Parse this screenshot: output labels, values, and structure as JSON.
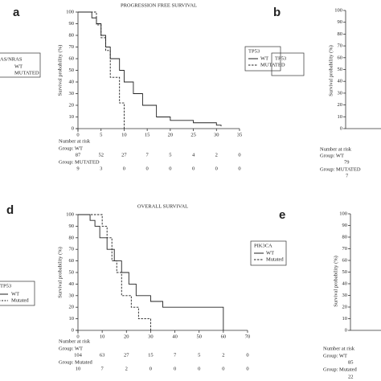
{
  "chart_data": [
    {
      "type": "step",
      "panel": "a",
      "title": "PROGRESSION FREE SURVIVAL",
      "y_label": "Survival probability (%)",
      "xlim": [
        0,
        35
      ],
      "xticks": [
        0,
        5,
        10,
        15,
        20,
        25,
        30,
        35
      ],
      "ylim": [
        0,
        100
      ],
      "yticks": [
        0,
        10,
        20,
        30,
        40,
        50,
        60,
        70,
        80,
        90,
        100
      ],
      "legend_title": "TP53",
      "series": [
        {
          "name": "WT",
          "color": "#222222",
          "linestyle": "solid",
          "x": [
            0,
            3,
            4,
            5,
            6,
            7,
            9,
            10,
            12,
            14,
            17,
            20,
            25,
            30,
            31
          ],
          "values": [
            100,
            95,
            90,
            80,
            70,
            60,
            50,
            40,
            30,
            20,
            10,
            7,
            5,
            3,
            2
          ]
        },
        {
          "name": "MUTATED",
          "color": "#222222",
          "linestyle": "dashed",
          "x": [
            0,
            3,
            4,
            5,
            6,
            7,
            9,
            10
          ],
          "values": [
            100,
            100,
            89,
            78,
            67,
            44,
            22,
            0
          ]
        }
      ],
      "risk": {
        "title": "Number at risk",
        "groups": [
          {
            "label": "Group: WT",
            "values": [
              87,
              52,
              27,
              7,
              5,
              4,
              2,
              0
            ]
          },
          {
            "label": "Group: MUTATED",
            "values": [
              9,
              3,
              0,
              0,
              0,
              0,
              0,
              0
            ]
          }
        ]
      }
    },
    {
      "type": "step",
      "panel": "d",
      "title": "OVERALL SURVIVAL",
      "y_label": "Survival probability (%)",
      "xlim": [
        0,
        70
      ],
      "xticks": [
        0,
        10,
        20,
        30,
        40,
        50,
        60,
        70
      ],
      "ylim": [
        0,
        100
      ],
      "yticks": [
        0,
        10,
        20,
        30,
        40,
        50,
        60,
        70,
        80,
        90,
        100
      ],
      "legend_title": "PIK3CA",
      "series": [
        {
          "name": "WT",
          "color": "#222222",
          "linestyle": "solid",
          "x": [
            0,
            5,
            7,
            9,
            12,
            15,
            18,
            21,
            24,
            30,
            35,
            40,
            60
          ],
          "values": [
            100,
            95,
            90,
            80,
            70,
            60,
            50,
            40,
            30,
            25,
            20,
            20,
            0
          ]
        },
        {
          "name": "Mutated",
          "color": "#222222",
          "linestyle": "dashed",
          "x": [
            0,
            10,
            12,
            14,
            16,
            18,
            22,
            25,
            27,
            30
          ],
          "values": [
            100,
            90,
            80,
            60,
            50,
            30,
            20,
            10,
            10,
            0
          ]
        }
      ],
      "risk": {
        "title": "Number at risk",
        "groups": [
          {
            "label": "Group: WT",
            "values": [
              104,
              63,
              27,
              15,
              7,
              5,
              2,
              0
            ]
          },
          {
            "label": "Group: Mutated",
            "values": [
              10,
              7,
              2,
              0,
              0,
              0,
              0,
              0
            ]
          }
        ]
      }
    }
  ],
  "fragments": {
    "left_top_legend": [
      "AS/NRAS",
      "WT",
      "MUTATED"
    ],
    "left_bottom_legend": [
      "TP53",
      "WT",
      "Mutated"
    ],
    "panel_b": {
      "letter": "b",
      "y_label": "Survival probability (%)",
      "legend_title": "TP53",
      "yticks": [
        0,
        10,
        20,
        30,
        40,
        50,
        60,
        70,
        80,
        90,
        100
      ],
      "risk": [
        "Number at risk",
        "Group: WT",
        "79",
        "Group: MUTATED",
        "7"
      ]
    },
    "panel_e": {
      "letter": "e",
      "y_label": "Survival probability (%)",
      "yticks": [
        0,
        10,
        20,
        30,
        40,
        50,
        60,
        70,
        80,
        90,
        100
      ],
      "risk": [
        "Number at risk",
        "Group: WT",
        "85",
        "Group: Mutated",
        "22"
      ]
    }
  }
}
